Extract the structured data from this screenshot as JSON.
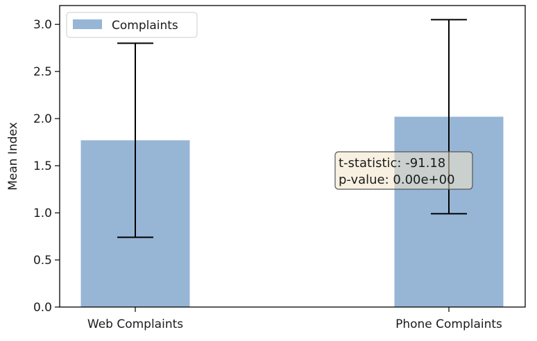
{
  "chart_data": {
    "type": "bar",
    "categories": [
      "Web Complaints",
      "Phone Complaints"
    ],
    "values": [
      1.77,
      2.02
    ],
    "error": [
      1.03,
      1.03
    ],
    "bar_color": "#97b6d6",
    "legend": {
      "entries": [
        "Complaints"
      ],
      "placement": "top-left"
    },
    "title": "",
    "xlabel": "",
    "ylabel": "Mean Index",
    "ylim": [
      0,
      3.2
    ],
    "yticks": [
      "0.0",
      "0.5",
      "1.0",
      "1.5",
      "2.0",
      "2.5",
      "3.0"
    ],
    "grid": false,
    "annotation": {
      "lines": [
        "t-statistic: -91.18",
        "p-value: 0.00e+00"
      ],
      "box_color": "#f3e6c8"
    }
  }
}
